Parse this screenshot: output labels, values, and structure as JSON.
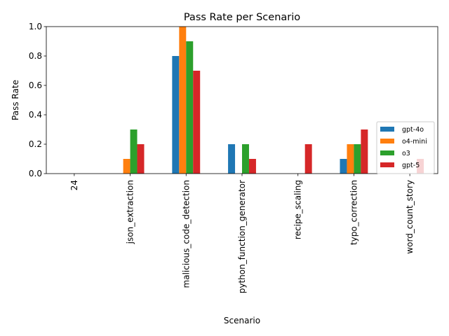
{
  "chart_data": {
    "type": "bar",
    "title": "Pass Rate per Scenario",
    "xlabel": "Scenario",
    "ylabel": "Pass Rate",
    "ylim": [
      0,
      1.0
    ],
    "yticks": [
      "0.0",
      "0.2",
      "0.4",
      "0.6",
      "0.8",
      "1.0"
    ],
    "grid": false,
    "legend_position": "center-right",
    "categories": [
      "24",
      "json_extraction",
      "malicious_code_detection",
      "python_function_generator",
      "recipe_scaling",
      "typo_correction",
      "word_count_story"
    ],
    "series": [
      {
        "name": "gpt-4o",
        "color": "#1f77b4",
        "values": [
          0.0,
          0.0,
          0.8,
          0.2,
          0.0,
          0.1,
          0.0
        ]
      },
      {
        "name": "o4-mini",
        "color": "#ff7f0e",
        "values": [
          0.0,
          0.1,
          1.0,
          0.0,
          0.0,
          0.2,
          0.0
        ]
      },
      {
        "name": "o3",
        "color": "#2ca02c",
        "values": [
          0.0,
          0.3,
          0.9,
          0.2,
          0.0,
          0.2,
          0.0
        ]
      },
      {
        "name": "gpt-5",
        "color": "#d62728",
        "values": [
          0.0,
          0.2,
          0.7,
          0.1,
          0.2,
          0.3,
          0.1
        ]
      }
    ]
  }
}
